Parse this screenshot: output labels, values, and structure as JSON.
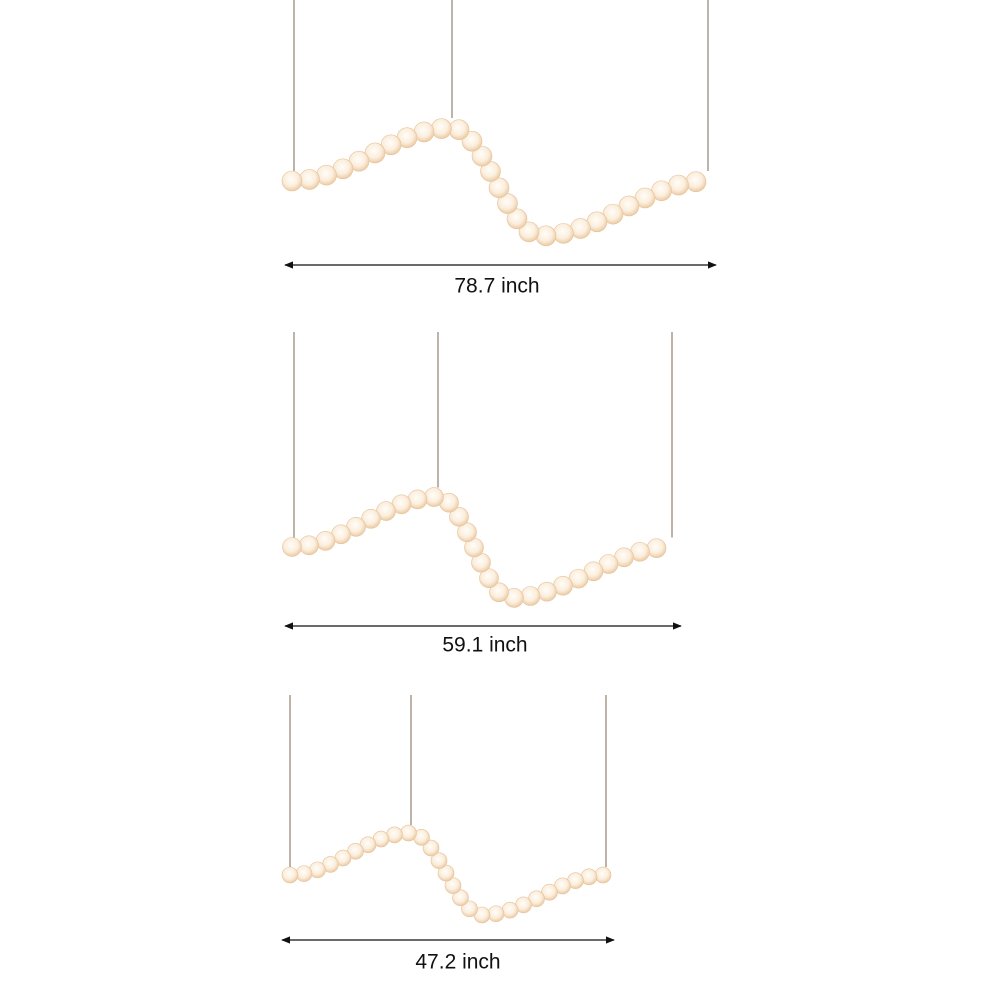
{
  "items": [
    {
      "label": "78.7 inch"
    },
    {
      "label": "59.1 inch"
    },
    {
      "label": "47.2 inch"
    }
  ]
}
